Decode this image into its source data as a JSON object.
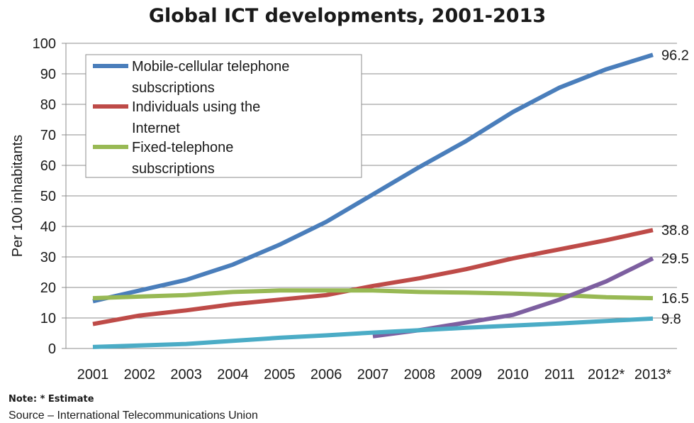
{
  "chart_data": {
    "type": "line",
    "title": "Global ICT developments, 2001-2013",
    "ylabel": "Per 100 inhabitants",
    "xlabel": "",
    "categories": [
      "2001",
      "2002",
      "2003",
      "2004",
      "2005",
      "2006",
      "2007",
      "2008",
      "2009",
      "2010",
      "2011",
      "2012*",
      "2013*"
    ],
    "ylim": [
      0,
      100
    ],
    "yticks": [
      0,
      10,
      20,
      30,
      40,
      50,
      60,
      70,
      80,
      90,
      100
    ],
    "grid": true,
    "legend_position": "top-left",
    "series": [
      {
        "name": "Mobile-cellular telephone subscriptions",
        "color": "#4a7ebb",
        "values": [
          15.5,
          19,
          22.5,
          27.5,
          34,
          41.5,
          50.5,
          59.5,
          68,
          77.5,
          85.5,
          91.5,
          96.2
        ],
        "end_label": "96.2",
        "in_legend": true
      },
      {
        "name": "Individuals using the Internet",
        "color": "#be4b48",
        "values": [
          8,
          10.8,
          12.5,
          14.5,
          16,
          17.5,
          20.5,
          23,
          26,
          29.5,
          32.5,
          35.5,
          38.8
        ],
        "end_label": "38.8",
        "in_legend": true
      },
      {
        "name": "Fixed-telephone subscriptions",
        "color": "#98b954",
        "values": [
          16.5,
          17,
          17.5,
          18.5,
          19,
          19,
          19,
          18.5,
          18.3,
          18,
          17.5,
          16.8,
          16.5
        ],
        "end_label": "16.5",
        "in_legend": true
      },
      {
        "name": "",
        "color": "#7d5fa0",
        "values": [
          null,
          null,
          null,
          null,
          null,
          null,
          4,
          6,
          8.5,
          11,
          16,
          22,
          29.5
        ],
        "end_label": "29.5",
        "in_legend": false
      },
      {
        "name": "",
        "color": "#4bacc6",
        "values": [
          0.5,
          1,
          1.5,
          2.5,
          3.5,
          4.3,
          5.2,
          6,
          6.8,
          7.5,
          8.2,
          9,
          9.8
        ],
        "end_label": "9.8",
        "in_legend": false
      }
    ]
  },
  "footer": {
    "note": "Note: * Estimate",
    "source": "Source – International Telecommunications Union"
  }
}
